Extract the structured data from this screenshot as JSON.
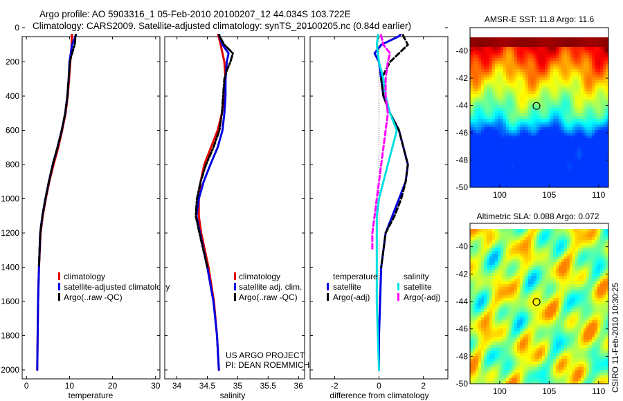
{
  "header": {
    "line1": "Argo profile: AO 5903316_1 05-Feb-2010 20100207_12 44.034S 103.722E",
    "line2": "Climatology: CARS2009. Satellite-adjusted climatology: synTS_20100205.nc (0.84d earlier)"
  },
  "side_label": "CSIRO 11-Feb-2010 10:30:25",
  "project": {
    "line1": "US ARGO PROJECT",
    "line2": "PI: DEAN ROEMMICH"
  },
  "chart_data": [
    {
      "type": "line",
      "xlabel": "temperature",
      "ylim": [
        2000,
        0
      ],
      "xlim": [
        -1,
        31
      ],
      "xticks": [
        0,
        10,
        20,
        30
      ],
      "yticks": [
        0,
        200,
        400,
        600,
        800,
        1000,
        1200,
        1400,
        1600,
        1800,
        2000
      ],
      "series": [
        {
          "name": "climatology",
          "color": "#e00000",
          "style": "solid",
          "depth": [
            0,
            100,
            200,
            300,
            400,
            500,
            600,
            700,
            800,
            900,
            1000,
            1100,
            1200,
            1400,
            1600,
            1800,
            2000
          ],
          "values": [
            10.6,
            10.5,
            10.2,
            9.9,
            9.6,
            9.1,
            8.3,
            7.4,
            6.3,
            5.3,
            4.5,
            3.8,
            3.3,
            2.9,
            2.7,
            2.6,
            2.5
          ]
        },
        {
          "name": "satellite-adjusted climatology",
          "color": "#0000e0",
          "style": "solid",
          "depth": [
            0,
            50,
            100,
            200,
            300,
            400,
            500,
            600,
            700,
            800,
            900,
            1000,
            1100,
            1200,
            1400,
            1600,
            1800,
            2000
          ],
          "values": [
            11.8,
            11.4,
            10.6,
            10.0,
            9.8,
            9.5,
            9.0,
            8.2,
            7.2,
            6.1,
            5.2,
            4.4,
            3.7,
            3.2,
            2.9,
            2.7,
            2.6,
            2.5
          ]
        },
        {
          "name": "Argo(..raw -QC)",
          "color": "#000000",
          "style": "dashdot",
          "depth": [
            0,
            50,
            100,
            150,
            200,
            300,
            400,
            500,
            600,
            700,
            800,
            900,
            1000,
            1100,
            1200,
            1400
          ],
          "values": [
            11.5,
            11.4,
            11.2,
            10.6,
            10.1,
            9.8,
            9.5,
            9.0,
            8.2,
            7.2,
            6.1,
            5.2,
            4.4,
            3.7,
            3.2,
            2.9
          ]
        }
      ],
      "legend": {
        "position": "bottom-right",
        "labels": [
          "climatology",
          "satellite-adjusted climatology",
          "Argo(..raw -QC)"
        ]
      }
    },
    {
      "type": "line",
      "xlabel": "salinity",
      "ylim": [
        2000,
        0
      ],
      "xlim": [
        33.8,
        36.1
      ],
      "xticks": [
        34,
        34.5,
        35,
        35.5,
        36
      ],
      "series": [
        {
          "name": "climatology",
          "color": "#e00000",
          "style": "solid",
          "depth": [
            0,
            100,
            200,
            300,
            400,
            500,
            600,
            700,
            800,
            900,
            1000,
            1100,
            1200,
            1400,
            1600,
            1800,
            2000
          ],
          "values": [
            34.65,
            34.72,
            34.78,
            34.8,
            34.78,
            34.74,
            34.67,
            34.56,
            34.45,
            34.39,
            34.36,
            34.36,
            34.4,
            34.52,
            34.61,
            34.66,
            34.69
          ]
        },
        {
          "name": "satellite adj. clim.",
          "color": "#0000e0",
          "style": "solid",
          "depth": [
            0,
            50,
            100,
            150,
            200,
            300,
            400,
            500,
            600,
            700,
            800,
            900,
            1000,
            1100,
            1200,
            1400,
            1600,
            1800,
            2000
          ],
          "values": [
            34.68,
            34.7,
            34.75,
            34.85,
            34.82,
            34.8,
            34.8,
            34.78,
            34.75,
            34.67,
            34.55,
            34.44,
            34.36,
            34.32,
            34.38,
            34.5,
            34.6,
            34.66,
            34.69
          ]
        },
        {
          "name": "Argo(..raw -QC)",
          "color": "#000000",
          "style": "dashdot",
          "depth": [
            0,
            50,
            100,
            150,
            200,
            250,
            300,
            400,
            500,
            600,
            700,
            800,
            900,
            1000,
            1100,
            1200,
            1400
          ],
          "values": [
            34.68,
            34.7,
            34.78,
            34.92,
            34.88,
            34.82,
            34.78,
            34.76,
            34.74,
            34.7,
            34.6,
            34.48,
            34.39,
            34.33,
            34.31,
            34.37,
            34.5
          ]
        }
      ],
      "legend": {
        "position": "bottom-right",
        "labels": [
          "climatology",
          "satellite adj. clim.",
          "Argo(..raw -QC)"
        ]
      }
    },
    {
      "type": "line",
      "xlabel": "difference from climatology",
      "ylim": [
        2000,
        0
      ],
      "xlim": [
        -3.1,
        3.1
      ],
      "xticks": [
        -2,
        0,
        2
      ],
      "xticklabels": [
        "-2",
        "0",
        "2"
      ],
      "series": [
        {
          "name": "temperature satellite",
          "color": "#0000e0",
          "style": "solid",
          "depth": [
            0,
            50,
            100,
            150,
            200,
            300,
            400,
            500,
            600,
            700,
            800,
            900,
            1000,
            1100,
            1200,
            1400,
            1600,
            1800,
            2000
          ],
          "values": [
            1.2,
            0.9,
            0.1,
            -0.2,
            0.0,
            0.1,
            0.2,
            0.5,
            0.9,
            1.1,
            1.3,
            1.2,
            0.9,
            0.6,
            0.3,
            0.1,
            0.05,
            0.0,
            0.0
          ]
        },
        {
          "name": "temperature Argo(-adj)",
          "color": "#000000",
          "style": "dashed",
          "depth": [
            0,
            50,
            100,
            150,
            200,
            250,
            300,
            400,
            500,
            600,
            700,
            800,
            900,
            1000,
            1100,
            1200,
            1400
          ],
          "values": [
            1.0,
            1.1,
            1.3,
            0.9,
            0.5,
            0.3,
            0.1,
            0.2,
            0.5,
            0.9,
            1.1,
            1.3,
            1.2,
            1.0,
            0.7,
            0.3,
            0.1
          ]
        },
        {
          "name": "salinity satellite",
          "color": "#00e0e0",
          "style": "solid",
          "depth": [
            0,
            100,
            200,
            300,
            400,
            500,
            600,
            700,
            800,
            900,
            1000,
            1100,
            1200,
            1400,
            1600,
            1800,
            2000
          ],
          "values": [
            0.0,
            -0.1,
            0.0,
            0.2,
            0.3,
            0.5,
            0.8,
            0.6,
            0.4,
            0.2,
            0.0,
            -0.1,
            -0.1,
            -0.1,
            -0.1,
            -0.05,
            0.0
          ]
        },
        {
          "name": "salinity Argo(-adj)",
          "color": "#ff00ff",
          "style": "dashed",
          "depth": [
            0,
            100,
            150,
            200,
            300,
            400,
            500,
            600,
            700,
            800,
            900,
            1000,
            1100,
            1200,
            1300
          ],
          "values": [
            0.0,
            0.2,
            0.5,
            0.4,
            0.3,
            0.3,
            0.4,
            0.3,
            0.2,
            0.1,
            0.0,
            -0.1,
            -0.2,
            -0.3,
            -0.3
          ]
        }
      ],
      "legend": {
        "position": "bottom",
        "headers": [
          "temperature",
          "salinity"
        ],
        "labels": [
          "satellite",
          "Argo(-adj)",
          "satellite",
          "Argo(-adj)"
        ]
      }
    },
    {
      "type": "heatmap",
      "title": "AMSR-E SST: 11.8 Argo: 11.6",
      "xlim": [
        97,
        111
      ],
      "ylim": [
        -50,
        -38.3
      ],
      "xticks": [
        100,
        105,
        110
      ],
      "yticks": [
        -40,
        -42,
        -44,
        -46,
        -48,
        -50
      ],
      "marker": {
        "lon": 103.722,
        "lat": -44.034
      },
      "colormap": "jet",
      "field": "warm at north, cold at south"
    },
    {
      "type": "heatmap",
      "title": "Altimetric SLA: 0.088 Argo: 0.072",
      "xlim": [
        97,
        111
      ],
      "ylim": [
        -50,
        -38.3
      ],
      "xticks": [
        100,
        105,
        110
      ],
      "yticks": [
        -40,
        -42,
        -44,
        -46,
        -48,
        -50
      ],
      "marker": {
        "lon": 103.722,
        "lat": -44.034
      },
      "colormap": "jet",
      "field": "mottled green with cyan lows and yellow highs"
    }
  ]
}
